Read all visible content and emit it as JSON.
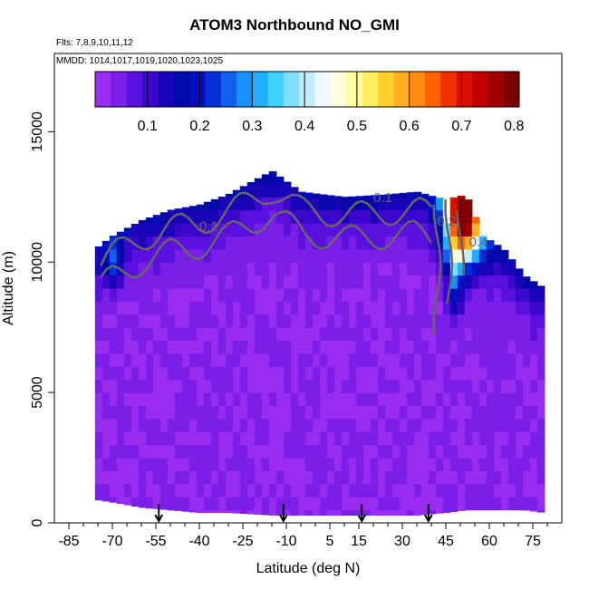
{
  "chart_data": {
    "type": "heatmap",
    "title": "ATOM3 Northbound NO_GMI",
    "flights_label": "Flts: 7,8,9,10,11,12",
    "dates_label": "MMDD: 1014,1017,1019,1020,1023,1025",
    "xlabel": "Latitude (deg N)",
    "ylabel": "Altitude (m)",
    "xlim": [
      -90,
      85
    ],
    "ylim": [
      0,
      18000
    ],
    "x_ticks": [
      -85,
      -70,
      -55,
      -40,
      -25,
      -10,
      5,
      15,
      30,
      45,
      60,
      75
    ],
    "y_ticks": [
      0,
      5000,
      10000,
      15000
    ],
    "colorbar": {
      "range": [
        0.0,
        0.81
      ],
      "tick_values": [
        0.1,
        0.2,
        0.3,
        0.4,
        0.5,
        0.6,
        0.7,
        0.8
      ],
      "colors": [
        "#9a2cf0",
        "#7a1ee8",
        "#5a10de",
        "#3a08cc",
        "#1a04b8",
        "#0408a8",
        "#0010c0",
        "#0030d8",
        "#1060f0",
        "#1890ff",
        "#20b0ff",
        "#40d0ff",
        "#80e0ff",
        "#c0eeff",
        "#f0f8ff",
        "#ffffe0",
        "#ffffa0",
        "#ffee60",
        "#ffd030",
        "#ffb020",
        "#ff8c10",
        "#ff6000",
        "#f03000",
        "#d81000",
        "#c00000",
        "#a00000",
        "#800000"
      ]
    },
    "contour_labels": [
      "0.1",
      "0.1",
      "0.2",
      "0.4"
    ],
    "arrow_latitudes": [
      -54,
      -11,
      16,
      39
    ],
    "profile": [
      {
        "lat": -76,
        "top": 10500,
        "bottom": 900
      },
      {
        "lat": -70,
        "top": 11000,
        "bottom": 800
      },
      {
        "lat": -60,
        "top": 11600,
        "bottom": 600
      },
      {
        "lat": -50,
        "top": 12000,
        "bottom": 500
      },
      {
        "lat": -40,
        "top": 12200,
        "bottom": 400
      },
      {
        "lat": -30,
        "top": 12600,
        "bottom": 400
      },
      {
        "lat": -15,
        "top": 13500,
        "bottom": 300
      },
      {
        "lat": -5,
        "top": 12700,
        "bottom": 300
      },
      {
        "lat": 10,
        "top": 12500,
        "bottom": 300
      },
      {
        "lat": 25,
        "top": 12600,
        "bottom": 300
      },
      {
        "lat": 35,
        "top": 12700,
        "bottom": 300
      },
      {
        "lat": 45,
        "top": 12400,
        "bottom": 400
      },
      {
        "lat": 52,
        "top": 12600,
        "bottom": 500
      },
      {
        "lat": 58,
        "top": 11000,
        "bottom": 500
      },
      {
        "lat": 65,
        "top": 10500,
        "bottom": 500
      },
      {
        "lat": 72,
        "top": 9500,
        "bottom": 500
      },
      {
        "lat": 79,
        "top": 9000,
        "bottom": 400
      }
    ],
    "hotspot": {
      "lat": 51,
      "alt": 11800,
      "value": 0.78
    }
  }
}
